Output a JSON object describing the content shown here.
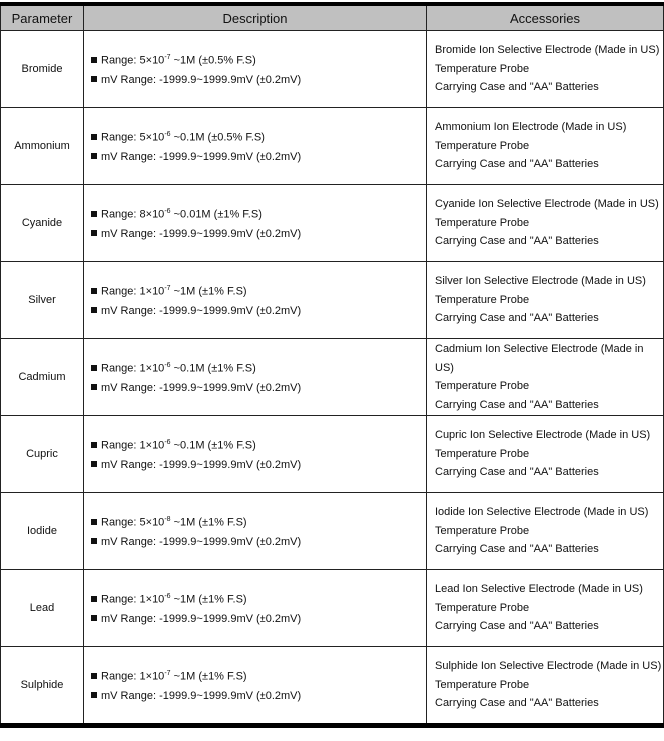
{
  "headers": {
    "parameter": "Parameter",
    "description": "Description",
    "accessories": "Accessories"
  },
  "rows": [
    {
      "parameter": "Bromide",
      "range_prefix": "Range: 5×10",
      "range_exp": "-7",
      "range_suffix": " ~1M (±0.5% F.S)",
      "mv": "mV Range: -1999.9~1999.9mV (±0.2mV)",
      "acc": [
        "Bromide Ion Selective Electrode (Made in US)",
        "Temperature Probe",
        "Carrying Case and \"AA\" Batteries"
      ]
    },
    {
      "parameter": "Ammonium",
      "range_prefix": "Range: 5×10",
      "range_exp": "-6",
      "range_suffix": " ~0.1M (±0.5% F.S)",
      "mv": "mV Range: -1999.9~1999.9mV (±0.2mV)",
      "acc": [
        "Ammonium Ion Electrode (Made in US)",
        "Temperature Probe",
        "Carrying Case and \"AA\" Batteries"
      ]
    },
    {
      "parameter": "Cyanide",
      "range_prefix": "Range: 8×10",
      "range_exp": "-6",
      "range_suffix": " ~0.01M (±1% F.S)",
      "mv": "mV Range: -1999.9~1999.9mV (±0.2mV)",
      "acc": [
        "Cyanide Ion Selective Electrode (Made in US)",
        "Temperature Probe",
        "Carrying Case and \"AA\" Batteries"
      ]
    },
    {
      "parameter": "Silver",
      "range_prefix": "Range: 1×10",
      "range_exp": "-7",
      "range_suffix": " ~1M (±1% F.S)",
      "mv": "mV Range: -1999.9~1999.9mV (±0.2mV)",
      "acc": [
        "Silver Ion Selective Electrode (Made in US)",
        "Temperature Probe",
        "Carrying Case and \"AA\" Batteries"
      ]
    },
    {
      "parameter": "Cadmium",
      "range_prefix": "Range: 1×10",
      "range_exp": "-6",
      "range_suffix": " ~0.1M (±1% F.S)",
      "mv": "mV Range: -1999.9~1999.9mV (±0.2mV)",
      "acc": [
        "Cadmium Ion Selective Electrode (Made in US)",
        "Temperature Probe",
        "Carrying Case and \"AA\" Batteries"
      ]
    },
    {
      "parameter": "Cupric",
      "range_prefix": "Range: 1×10",
      "range_exp": "-6",
      "range_suffix": " ~0.1M (±1% F.S)",
      "mv": "mV Range: -1999.9~1999.9mV (±0.2mV)",
      "acc": [
        "Cupric Ion Selective Electrode (Made in US)",
        "Temperature Probe",
        "Carrying Case and \"AA\" Batteries"
      ]
    },
    {
      "parameter": "Iodide",
      "range_prefix": "Range: 5×10",
      "range_exp": "-8",
      "range_suffix": " ~1M (±1% F.S)",
      "mv": "mV Range: -1999.9~1999.9mV (±0.2mV)",
      "acc": [
        "Iodide Ion Selective Electrode (Made in US)",
        "Temperature Probe",
        "Carrying Case and \"AA\" Batteries"
      ]
    },
    {
      "parameter": "Lead",
      "range_prefix": "Range: 1×10",
      "range_exp": "-6",
      "range_suffix": " ~1M (±1% F.S)",
      "mv": "mV Range: -1999.9~1999.9mV (±0.2mV)",
      "acc": [
        "Lead Ion Selective Electrode (Made in US)",
        "Temperature Probe",
        "Carrying Case and \"AA\" Batteries"
      ]
    },
    {
      "parameter": "Sulphide",
      "range_prefix": "Range: 1×10",
      "range_exp": "-7",
      "range_suffix": " ~1M (±1% F.S)",
      "mv": "mV Range: -1999.9~1999.9mV (±0.2mV)",
      "acc": [
        "Sulphide Ion Selective Electrode (Made in US)",
        "Temperature Probe",
        "Carrying Case and \"AA\" Batteries"
      ]
    }
  ]
}
